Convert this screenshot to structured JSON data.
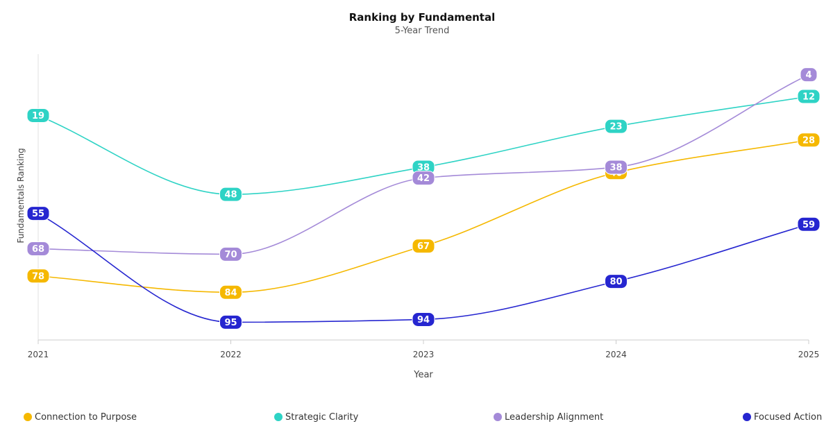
{
  "chart_data": {
    "type": "line",
    "title": "Ranking by Fundamental",
    "subtitle": "5-Year Trend",
    "xlabel": "Year",
    "ylabel": "Fundamentals Ranking",
    "categories": [
      "2021",
      "2022",
      "2023",
      "2024",
      "2025"
    ],
    "y_axis_inverted": true,
    "ylim": [
      0,
      100
    ],
    "grid": false,
    "legend_position": "bottom",
    "series": [
      {
        "name": "Connection to Purpose",
        "color": "#f5b800",
        "values": [
          78,
          84,
          67,
          40,
          28
        ]
      },
      {
        "name": "Strategic Clarity",
        "color": "#2ed3c5",
        "values": [
          19,
          48,
          38,
          23,
          12
        ]
      },
      {
        "name": "Leadership Alignment",
        "color": "#a48ad8",
        "values": [
          68,
          70,
          42,
          38,
          4
        ]
      },
      {
        "name": "Focused Action",
        "color": "#2626d0",
        "values": [
          55,
          95,
          94,
          80,
          59
        ]
      }
    ]
  }
}
